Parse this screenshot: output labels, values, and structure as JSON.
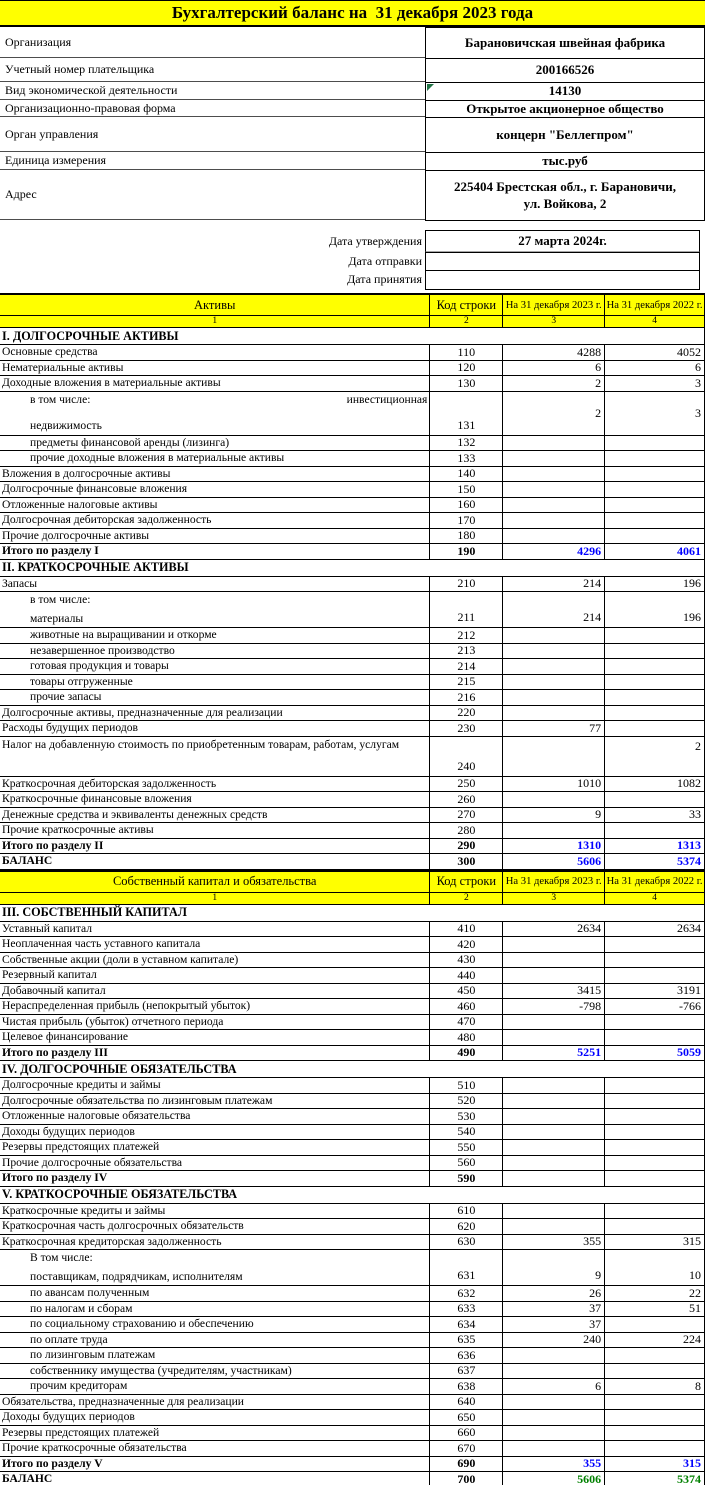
{
  "title": "Бухгалтерский баланс на  31 декабря 2023 года",
  "colors": {
    "header_yellow": "#ffff00",
    "total_value_blue": "#0000ff",
    "balance_value_green": "#008000",
    "note_marker_green": "#217346"
  },
  "info": {
    "rows": [
      {
        "label": "Организация",
        "value": "Барановичская швейная фабрика"
      },
      {
        "label": "Учетный номер плательщика",
        "value": "200166526"
      },
      {
        "label": "Вид экономической деятельности",
        "value": "14130",
        "marker": true
      },
      {
        "label": "Организационно-правовая форма",
        "value": "Открытое акционерное общество"
      },
      {
        "label": "Орган управления",
        "value": "концерн \"Беллегпром\""
      },
      {
        "label": "Единица измерения",
        "value": "тыс.руб"
      },
      {
        "label": "Адрес",
        "value": "225404 Брестская обл., г. Барановичи,\nул. Войкова, 2"
      }
    ]
  },
  "dates": {
    "rows": [
      {
        "label": "Дата утверждения",
        "value": "27 марта 2024г."
      },
      {
        "label": "Дата отправки",
        "value": ""
      },
      {
        "label": "Дата принятия",
        "value": ""
      }
    ]
  },
  "assets_table": {
    "header": {
      "col1": "Активы",
      "col2": "Код строки",
      "col3": "На 31 декабря 2023 г.",
      "col4": "На 31 декабря 2022 г.",
      "nums": [
        "1",
        "2",
        "3",
        "4"
      ]
    },
    "rows": [
      {
        "t": "sec",
        "label": "I. ДОЛГОСРОЧНЫЕ АКТИВЫ"
      },
      {
        "t": "row",
        "label": "Основные средства",
        "code": "110",
        "v1": "4288",
        "v2": "4052"
      },
      {
        "t": "row",
        "label": "Нематериальные активы",
        "code": "120",
        "v1": "6",
        "v2": "6"
      },
      {
        "t": "row",
        "label": "Доходные вложения в материальные активы",
        "code": "130",
        "v1": "2",
        "v2": "3"
      },
      {
        "t": "row2",
        "label": "в том числе:",
        "right": "инвестиционная",
        "label2": "недвижимость",
        "code": "131",
        "v1": "2",
        "v2": "3"
      },
      {
        "t": "row",
        "label": "предметы финансовой аренды (лизинга)",
        "code": "132",
        "indent": true
      },
      {
        "t": "row",
        "label": "прочие доходные вложения в материальные активы",
        "code": "133",
        "indent": true
      },
      {
        "t": "row",
        "label": "Вложения в долгосрочные активы",
        "code": "140"
      },
      {
        "t": "row",
        "label": "Долгосрочные финансовые вложения",
        "code": "150"
      },
      {
        "t": "row",
        "label": "Отложенные налоговые активы",
        "code": "160"
      },
      {
        "t": "row",
        "label": "Долгосрочная дебиторская задолженность",
        "code": "170"
      },
      {
        "t": "row",
        "label": "Прочие долгосрочные активы",
        "code": "180"
      },
      {
        "t": "total",
        "label": "Итого по разделу I",
        "code": "190",
        "v1": "4296",
        "v2": "4061",
        "color": "blue"
      },
      {
        "t": "sec",
        "label": "II. КРАТКОСРОЧНЫЕ АКТИВЫ"
      },
      {
        "t": "row",
        "label": "Запасы",
        "code": "210",
        "v1": "214",
        "v2": "196"
      },
      {
        "t": "row2",
        "label": "в том числе:",
        "label2": "материалы",
        "code": "211",
        "v1": "214",
        "v2": "196"
      },
      {
        "t": "row",
        "label": "животные на выращивании и откорме",
        "code": "212",
        "indent": true
      },
      {
        "t": "row",
        "label": "незавершенное производство",
        "code": "213",
        "indent": true
      },
      {
        "t": "row",
        "label": "готовая продукция и товары",
        "code": "214",
        "indent": true
      },
      {
        "t": "row",
        "label": "товары отгруженные",
        "code": "215",
        "indent": true
      },
      {
        "t": "row",
        "label": "прочие запасы",
        "code": "216",
        "indent": true
      },
      {
        "t": "row",
        "label": "Долгосрочные активы, предназначенные для реализации",
        "code": "220"
      },
      {
        "t": "row",
        "label": "Расходы будущих периодов",
        "code": "230",
        "v1": "77",
        "v2": ""
      },
      {
        "t": "rowtall",
        "label": "Налог на добавленную стоимость по приобретенным товарам, работам, услугам",
        "code": "240",
        "v1": "",
        "v2": "2"
      },
      {
        "t": "row",
        "label": "Краткосрочная дебиторская задолженность",
        "code": "250",
        "v1": "1010",
        "v2": "1082"
      },
      {
        "t": "row",
        "label": "Краткосрочные финансовые вложения",
        "code": "260"
      },
      {
        "t": "row",
        "label": "Денежные средства и эквиваленты денежных средств",
        "code": "270",
        "v1": "9",
        "v2": "33"
      },
      {
        "t": "row",
        "label": "Прочие краткосрочные активы",
        "code": "280"
      },
      {
        "t": "total",
        "label": "Итого по разделу II",
        "code": "290",
        "v1": "1310",
        "v2": "1313",
        "color": "blue"
      },
      {
        "t": "total",
        "label": "БАЛАНС",
        "code": "300",
        "v1": "5606",
        "v2": "5374",
        "color": "blue"
      }
    ]
  },
  "equity_table": {
    "header": {
      "col1": "Собственный капитал и обязательства",
      "col2": "Код строки",
      "col3": "На 31 декабря 2023 г.",
      "col4": "На 31 декабря 2022 г.",
      "nums": [
        "1",
        "2",
        "3",
        "4"
      ]
    },
    "rows": [
      {
        "t": "sec",
        "label": "III. СОБСТВЕННЫЙ КАПИТАЛ"
      },
      {
        "t": "row",
        "label": "Уставный капитал",
        "code": "410",
        "v1": "2634",
        "v2": "2634"
      },
      {
        "t": "row",
        "label": "Неоплаченная часть уставного капитала",
        "code": "420"
      },
      {
        "t": "row",
        "label": "Собственные акции (доли в уставном капитале)",
        "code": "430"
      },
      {
        "t": "row",
        "label": "Резервный капитал",
        "code": "440"
      },
      {
        "t": "row",
        "label": "Добавочный капитал",
        "code": "450",
        "v1": "3415",
        "v2": "3191"
      },
      {
        "t": "row",
        "label": "Нераспределенная прибыль (непокрытый убыток)",
        "code": "460",
        "v1": "-798",
        "v2": "-766"
      },
      {
        "t": "row",
        "label": "Чистая прибыль (убыток) отчетного периода",
        "code": "470"
      },
      {
        "t": "row",
        "label": "Целевое финансирование",
        "code": "480"
      },
      {
        "t": "total",
        "label": "Итого по разделу III",
        "code": "490",
        "v1": "5251",
        "v2": "5059",
        "color": "blue"
      },
      {
        "t": "sec",
        "label": "IV. ДОЛГОСРОЧНЫЕ ОБЯЗАТЕЛЬСТВА"
      },
      {
        "t": "row",
        "label": "Долгосрочные кредиты и займы",
        "code": "510"
      },
      {
        "t": "row",
        "label": "Долгосрочные обязательства по лизинговым платежам",
        "code": "520"
      },
      {
        "t": "row",
        "label": "Отложенные налоговые обязательства",
        "code": "530"
      },
      {
        "t": "row",
        "label": "Доходы будущих периодов",
        "code": "540"
      },
      {
        "t": "row",
        "label": "Резервы предстоящих платежей",
        "code": "550"
      },
      {
        "t": "row",
        "label": "Прочие долгосрочные обязательства",
        "code": "560"
      },
      {
        "t": "total",
        "label": "Итого по разделу IV",
        "code": "590"
      },
      {
        "t": "sec",
        "label": "V. КРАТКОСРОЧНЫЕ ОБЯЗАТЕЛЬСТВА"
      },
      {
        "t": "row",
        "label": "Краткосрочные кредиты и займы",
        "code": "610"
      },
      {
        "t": "row",
        "label": "Краткосрочная часть долгосрочных обязательств",
        "code": "620"
      },
      {
        "t": "row",
        "label": "Краткосрочная кредиторская задолженность",
        "code": "630",
        "v1": "355",
        "v2": "315"
      },
      {
        "t": "row2",
        "label": "В том числе:",
        "label2": "поставщикам, подрядчикам, исполнителям",
        "code": "631",
        "v1": "9",
        "v2": "10"
      },
      {
        "t": "row",
        "label": "по авансам полученным",
        "code": "632",
        "v1": "26",
        "v2": "22",
        "indent": true
      },
      {
        "t": "row",
        "label": "по налогам и сборам",
        "code": "633",
        "v1": "37",
        "v2": "51",
        "indent": true
      },
      {
        "t": "row",
        "label": "по социальному страхованию и обеспечению",
        "code": "634",
        "v1": "37",
        "v2": "",
        "indent": true
      },
      {
        "t": "row",
        "label": "по оплате труда",
        "code": "635",
        "v1": "240",
        "v2": "224",
        "indent": true
      },
      {
        "t": "row",
        "label": "по лизинговым платежам",
        "code": "636",
        "indent": true
      },
      {
        "t": "row",
        "label": "собственнику имущества (учредителям, участникам)",
        "code": "637",
        "indent": true
      },
      {
        "t": "row",
        "label": "прочим кредиторам",
        "code": "638",
        "v1": "6",
        "v2": "8",
        "indent": true
      },
      {
        "t": "row",
        "label": "Обязательства, предназначенные для реализации",
        "code": "640"
      },
      {
        "t": "row",
        "label": "Доходы будущих периодов",
        "code": "650"
      },
      {
        "t": "row",
        "label": "Резервы предстоящих платежей",
        "code": "660"
      },
      {
        "t": "row",
        "label": "Прочие краткосрочные обязательства",
        "code": "670"
      },
      {
        "t": "total",
        "label": "Итого по разделу V",
        "code": "690",
        "v1": "355",
        "v2": "315",
        "color": "blue"
      },
      {
        "t": "total",
        "label": "БАЛАНС",
        "code": "700",
        "v1": "5606",
        "v2": "5374",
        "color": "green"
      }
    ]
  }
}
